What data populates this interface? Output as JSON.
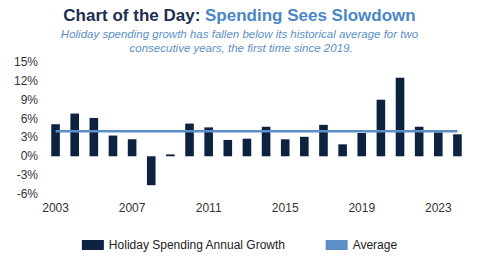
{
  "chart_data": {
    "type": "bar",
    "title": "Chart of the Day: Spending Sees Slowdown",
    "subtitle": "Holiday spending growth has fallen below its historical average for two consecutive years, the first time since 2019.",
    "categories": [
      "2003",
      null,
      null,
      null,
      "2007",
      null,
      null,
      null,
      "2011",
      null,
      null,
      null,
      "2015",
      null,
      null,
      null,
      "2019",
      null,
      null,
      null,
      "2023",
      null
    ],
    "series": [
      {
        "name": "Holiday Spending Annual Growth",
        "type": "bar",
        "color": "#0d2240",
        "values": [
          5.1,
          6.8,
          6.1,
          3.3,
          2.7,
          -4.6,
          0.3,
          5.2,
          4.6,
          2.6,
          2.8,
          4.7,
          2.7,
          3.1,
          5.0,
          1.9,
          3.7,
          9.0,
          12.5,
          4.7,
          3.8,
          3.5
        ]
      },
      {
        "name": "Average",
        "type": "line",
        "color": "#5b8fc7",
        "values": [
          4.0,
          4.0,
          4.0,
          4.0,
          4.0,
          4.0,
          4.0,
          4.0,
          4.0,
          4.0,
          4.0,
          4.0,
          4.0,
          4.0,
          4.0,
          4.0,
          4.0,
          4.0,
          4.0,
          4.0,
          4.0,
          4.0
        ]
      }
    ],
    "ylim": [
      -6,
      15
    ],
    "yticks": [
      {
        "value": -6,
        "label": "-6%"
      },
      {
        "value": -3,
        "label": "-3%"
      },
      {
        "value": 0,
        "label": "0%"
      },
      {
        "value": 3,
        "label": "3%"
      },
      {
        "value": 6,
        "label": "6%"
      },
      {
        "value": 9,
        "label": "9%"
      },
      {
        "value": 12,
        "label": "12%"
      },
      {
        "value": 15,
        "label": "15%"
      }
    ],
    "grid": false,
    "legend": "bottom"
  }
}
